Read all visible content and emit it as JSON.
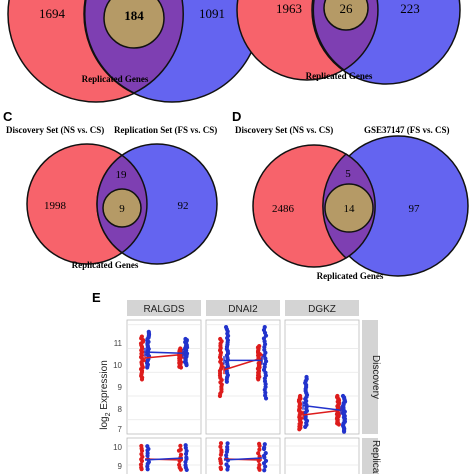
{
  "panels": {
    "a_partial": {
      "left_only": "1694",
      "overlap": "184",
      "right_only": "1091",
      "caption": "Replicated Genes"
    },
    "b_partial": {
      "left_only": "1963",
      "overlap": "26",
      "right_only": "223",
      "caption": "Replicated Genes"
    },
    "c": {
      "letter": "C",
      "left_label": "Discovery Set (NS vs. CS)",
      "right_label": "Replication Set (FS vs. CS)",
      "left_only": "1998",
      "overlap_outer": "19",
      "overlap_inner": "9",
      "right_only": "92",
      "caption": "Replicated Genes"
    },
    "d": {
      "letter": "D",
      "left_label": "Discovery Set (NS vs. CS)",
      "right_label": "GSE37147 (FS vs. CS)",
      "left_only": "2486",
      "overlap_outer": "5",
      "overlap_inner": "14",
      "right_only": "97",
      "caption": "Replicated Genes"
    },
    "e": {
      "letter": "E",
      "ylabel_prefix": "log",
      "ylabel_sub": "2",
      "ylabel_suffix": " Expression",
      "facets_top": [
        "RALGDS",
        "DNAI2",
        "DGKZ"
      ],
      "facets_right": [
        "Discovery",
        "Replicat"
      ],
      "yticks_top": [
        "11",
        "10",
        "9",
        "8",
        "7"
      ],
      "yticks_bottom": [
        "10",
        "9"
      ]
    }
  },
  "colors": {
    "left_circle": "#f7636b",
    "right_circle": "#6464f0",
    "overlap": "#7e3fb2",
    "inner": "#b59a66",
    "red_points": "#dd1c1c",
    "blue_points": "#2233cc",
    "facet_strip": "#d4d4d4"
  },
  "chart_data": [
    {
      "type": "scatter",
      "title": "",
      "facet_row": "Discovery",
      "facets": [
        {
          "name": "RALGDS",
          "series": [
            {
              "color": "red",
              "x": [
                "1",
                "2"
              ],
              "y_range": [
                [
                  8.7,
                  10.5
                ],
                [
                  9.2,
                  10.0
                ]
              ],
              "mean": [
                9.6,
                9.75
              ]
            },
            {
              "color": "blue",
              "x": [
                "1",
                "2"
              ],
              "y_range": [
                [
                  9.2,
                  10.7
                ],
                [
                  9.3,
                  10.4
                ]
              ],
              "mean": [
                9.85,
                9.8
              ]
            }
          ]
        },
        {
          "name": "DNAI2",
          "series": [
            {
              "color": "red",
              "x": [
                "1",
                "2"
              ],
              "y_range": [
                [
                  8.0,
                  10.4
                ],
                [
                  8.7,
                  10.1
                ]
              ],
              "mean": [
                9.1,
                9.6
              ]
            },
            {
              "color": "blue",
              "x": [
                "1",
                "2"
              ],
              "y_range": [
                [
                  8.6,
                  10.9
                ],
                [
                  7.9,
                  10.9
                ]
              ],
              "mean": [
                9.5,
                9.5
              ]
            }
          ]
        },
        {
          "name": "DGKZ",
          "series": [
            {
              "color": "red",
              "x": [
                "1",
                "2"
              ],
              "y_range": [
                [
                  6.6,
                  8.0
                ],
                [
                  6.8,
                  8.0
                ]
              ],
              "mean": [
                7.2,
                7.4
              ]
            },
            {
              "color": "blue",
              "x": [
                "1",
                "2"
              ],
              "y_range": [
                [
                  6.7,
                  8.8
                ],
                [
                  6.5,
                  8.0
                ]
              ],
              "mean": [
                7.6,
                7.4
              ]
            }
          ]
        }
      ],
      "ylim": [
        6.4,
        11.2
      ]
    }
  ]
}
